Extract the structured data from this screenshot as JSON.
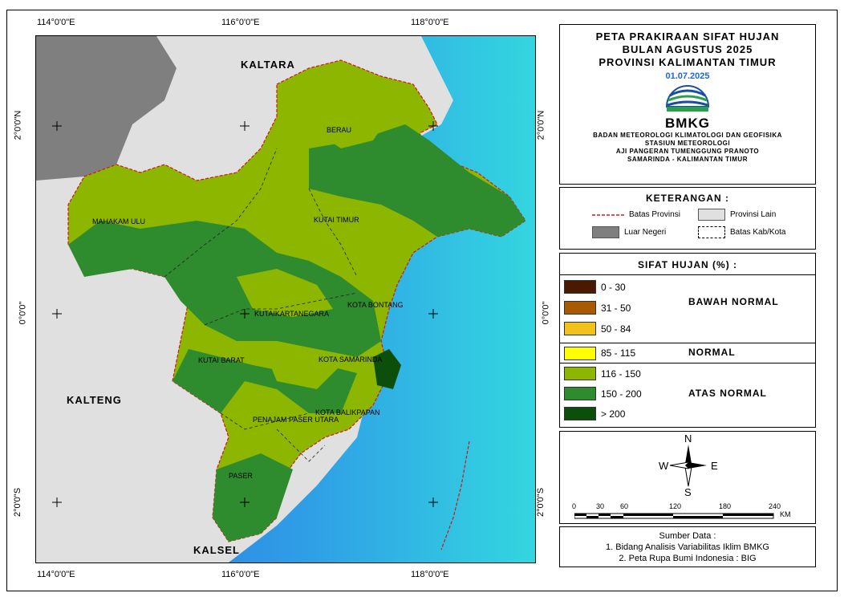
{
  "map": {
    "labels": {
      "kaltara": "KALTARA",
      "kalteng": "KALTENG",
      "kalsel": "KALSEL",
      "berau": "BERAU",
      "mahakam_ulu": "MAHAKAM ULU",
      "kutai_timur": "KUTAI TIMUR",
      "kota_bontang": "KOTA BONTANG",
      "kutai_kartanegara": "KUTAIKARTANEGARA",
      "kutai_barat": "KUTAI BARAT",
      "kota_samarinda": "KOTA SAMARINDA",
      "kota_balikpapan": "KOTA BALIKPAPAN",
      "penajam_paser_utara": "PENAJAM PASER UTARA",
      "paser": "PASER"
    },
    "coords": {
      "top_left": "114°0'0\"E",
      "top_mid": "116°0'0\"E",
      "top_right": "118°0'0\"E",
      "bottom_left": "114°0'0\"E",
      "bottom_mid": "116°0'0\"E",
      "bottom_right": "118°0'0\"E",
      "left_top": "2°0'0\"N",
      "left_mid": "0°0'0\"",
      "left_bottom": "2°0'0\"S",
      "right_top": "2°0'0\"N",
      "right_mid": "0°0'0\"",
      "right_bottom": "2°0'0\"S"
    }
  },
  "title": {
    "line1": "PETA PRAKIRAAN SIFAT HUJAN",
    "line2": "BULAN AGUSTUS 2025",
    "line3": "PROVINSI KALIMANTAN TIMUR",
    "date": "01.07.2025",
    "logo_text": "BMKG",
    "org1": "BADAN METEOROLOGI KLIMATOLOGI DAN GEOFISIKA",
    "org2": "STASIUN METEOROLOGI",
    "org3": "AJI PANGERAN TUMENGGUNG PRANOTO",
    "org4": "SAMARINDA - KALIMANTAN TIMUR"
  },
  "keterangan": {
    "heading": "KETERANGAN :",
    "batas_provinsi": "Batas Provinsi",
    "provinsi_lain": "Provinsi Lain",
    "luar_negeri": "Luar Negeri",
    "batas_kab": "Batas Kab/Kota"
  },
  "sifat": {
    "heading": "SIFAT HUJAN (%) :",
    "classes": [
      {
        "label": "0 - 30",
        "color": "#4a1a00"
      },
      {
        "label": "31 - 50",
        "color": "#a85a00"
      },
      {
        "label": "50 - 84",
        "color": "#f2c21b"
      },
      {
        "label": "85 - 115",
        "color": "#ffff00"
      },
      {
        "label": "116 - 150",
        "color": "#8db600"
      },
      {
        "label": "150 - 200",
        "color": "#2e8b2e"
      },
      {
        "label": "> 200",
        "color": "#0b4f0b"
      }
    ],
    "cat_bawah": "BAWAH NORMAL",
    "cat_normal": "NORMAL",
    "cat_atas": "ATAS NORMAL"
  },
  "compass": {
    "n": "N",
    "s": "S",
    "e": "E",
    "w": "W"
  },
  "scale": {
    "ticks": [
      "0",
      "30",
      "60",
      "120",
      "180",
      "240"
    ],
    "unit": "KM"
  },
  "source": {
    "heading": "Sumber Data :",
    "line1": "1. Bidang Analisis Variabilitas Iklim BMKG",
    "line2": "2. Peta Rupa Bumi Indonesia : BIG"
  },
  "colors": {
    "sea_light": "#33d6e0",
    "sea_deep": "#2f6fe0",
    "other_province": "#e0e0e0",
    "foreign": "#7f7f7f",
    "province_border": "#d01818"
  }
}
